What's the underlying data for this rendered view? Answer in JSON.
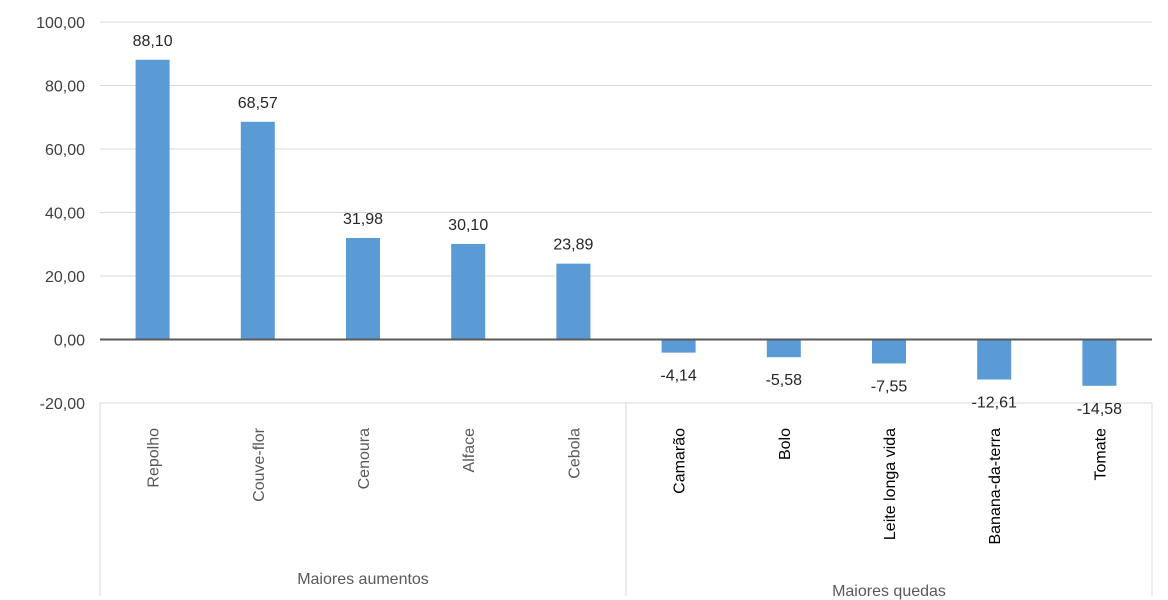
{
  "chart_data": {
    "type": "bar",
    "categories": [
      "Repolho",
      "Couve-flor",
      "Cenoura",
      "Alface",
      "Cebola",
      "Camarão",
      "Bolo",
      "Leite longa vida",
      "Banana-da-terra",
      "Tomate"
    ],
    "values": [
      88.1,
      68.57,
      31.98,
      30.1,
      23.89,
      -4.14,
      -5.58,
      -7.55,
      -12.61,
      -14.58
    ],
    "data_labels": [
      "88,10",
      "68,57",
      "31,98",
      "30,10",
      "23,89",
      "-4,14",
      "-5,58",
      "-7,55",
      "-12,61",
      "-14,58"
    ],
    "groups": [
      {
        "label": "Maiores aumentos",
        "count": 5
      },
      {
        "label": "Maiores quedas",
        "count": 5
      }
    ],
    "ylim": [
      -20,
      100
    ],
    "yticks": [
      100,
      80,
      60,
      40,
      20,
      0,
      -20
    ],
    "ytick_labels": [
      "100,00",
      "80,00",
      "60,00",
      "40,00",
      "20,00",
      "0,00",
      "-20,00"
    ],
    "grid": true,
    "bar_color": "#5B9BD5",
    "grid_color": "#D9D9D9",
    "category_label_colors": {
      "Maiores aumentos": "#595959",
      "Maiores quedas": "#000000"
    }
  }
}
